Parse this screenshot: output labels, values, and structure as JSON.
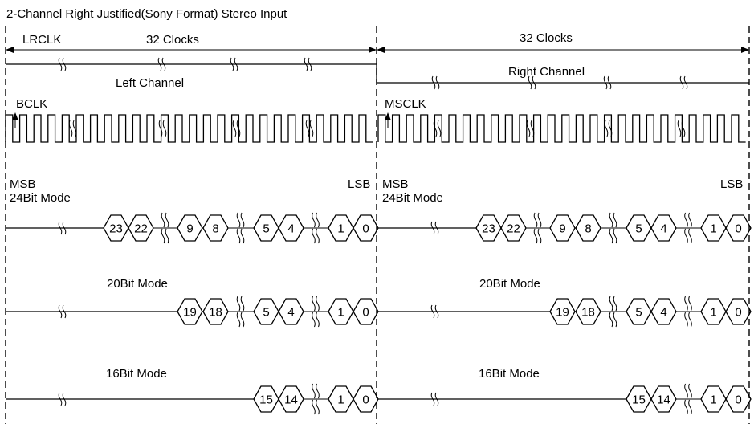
{
  "title": "2-Channel Right Justified(Sony Format) Stereo Input",
  "header": {
    "lrclk": "LRCLK",
    "left_clocks": "32 Clocks",
    "right_clocks": "32 Clocks"
  },
  "channels": {
    "left": "Left Channel",
    "right": "Right Channel"
  },
  "clocks": {
    "left": "BCLK",
    "right": "MSCLK"
  },
  "markers": {
    "msb_left": "MSB",
    "msb_right": "MSB",
    "lsb_left": "LSB",
    "lsb_right": "LSB"
  },
  "modes": [
    {
      "label": "24Bit Mode",
      "cells_left": [
        "23",
        "22",
        "9",
        "8",
        "5",
        "4",
        "1",
        "0"
      ],
      "cells_right": [
        "23",
        "22",
        "9",
        "8",
        "5",
        "4",
        "1",
        "0"
      ]
    },
    {
      "label_left": "20Bit Mode",
      "label_right": "20Bit Mode",
      "cells_left": [
        "19",
        "18",
        "5",
        "4",
        "1",
        "0"
      ],
      "cells_right": [
        "19",
        "18",
        "5",
        "4",
        "1",
        "0"
      ]
    },
    {
      "label_left": "16Bit Mode",
      "label_right": "16Bit Mode",
      "cells_left": [
        "15",
        "14",
        "1",
        "0"
      ],
      "cells_right": [
        "15",
        "14",
        "1",
        "0"
      ]
    }
  ]
}
